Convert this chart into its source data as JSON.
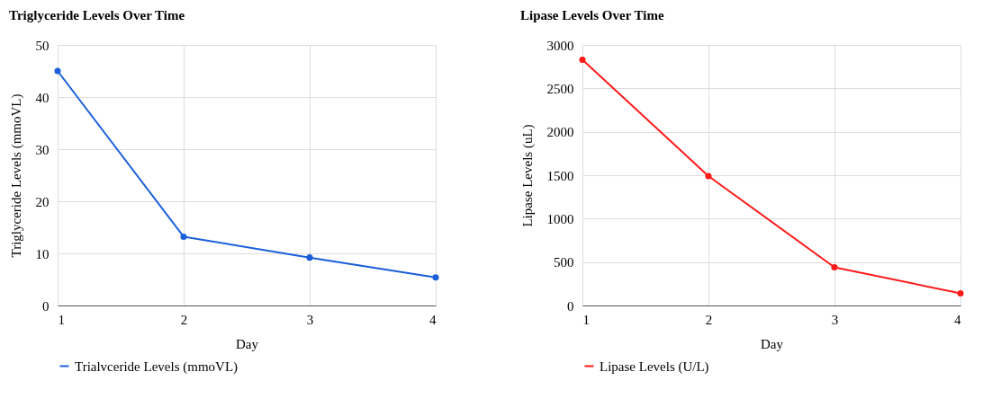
{
  "chart_data": [
    {
      "type": "line",
      "title": "Triglyceride Levels Over Time",
      "xlabel": "Day",
      "ylabel": "Triglyceride Levels (mmoVL)",
      "x": [
        1,
        2,
        3,
        4
      ],
      "xlim": [
        1,
        4
      ],
      "xticks": [
        1,
        2,
        3,
        4
      ],
      "ylim": [
        0,
        50
      ],
      "yticks": [
        0,
        10,
        20,
        30,
        40,
        50
      ],
      "grid": true,
      "legend": "bottom left",
      "marker": "circle",
      "series": [
        {
          "name": "Trialvceride Levels (mmoVL)",
          "color": "#1a5fd9",
          "values": [
            45,
            13.2,
            9.2,
            5.4
          ]
        }
      ]
    },
    {
      "type": "line",
      "title": "Lipase Levels Over Time",
      "xlabel": "Day",
      "ylabel": "Lipase Levels (uL)",
      "x": [
        1,
        2,
        3,
        4
      ],
      "xlim": [
        1,
        4
      ],
      "xticks": [
        1,
        2,
        3,
        4
      ],
      "ylim": [
        0,
        3000
      ],
      "yticks": [
        0,
        500,
        1000,
        1500,
        2000,
        2500,
        3000
      ],
      "grid": true,
      "legend": "bottom left",
      "marker": "circle",
      "series": [
        {
          "name": "Lipase Levels (U/L)",
          "color": "#ff1a1a",
          "values": [
            2830,
            1490,
            440,
            140
          ]
        }
      ]
    }
  ]
}
